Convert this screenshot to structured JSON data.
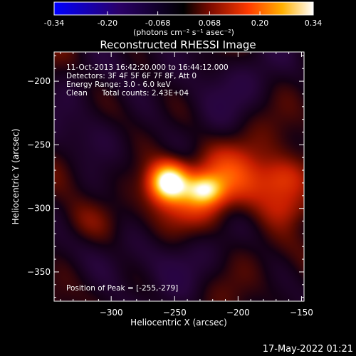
{
  "colorbar": {
    "ticks": [
      "-0.34",
      "-0.20",
      "-0.068",
      "0.068",
      "0.20",
      "0.34"
    ],
    "unit_label": "(photons cm⁻² s⁻¹ asec⁻²)",
    "range": [
      -0.34,
      0.34
    ]
  },
  "chart_data": {
    "type": "heatmap",
    "title": "Reconstructed RHESSI Image",
    "xlabel": "Heliocentric X (arcsec)",
    "ylabel": "Heliocentric Y (arcsec)",
    "xlim": [
      -345,
      -148
    ],
    "ylim": [
      -373,
      -177
    ],
    "x_ticks": [
      -300,
      -250,
      -200,
      -150
    ],
    "y_ticks": [
      -200,
      -250,
      -300,
      -350
    ],
    "annotations": {
      "line1": "11-Oct-2013 16:42:20.000 to 16:44:12.000",
      "line2": "Detectors: 3F 4F 5F 6F 7F 8F, Att 0",
      "line3": "Energy Range: 3.0 - 6.0 keV",
      "line4_method": "Clean",
      "line4_counts": "Total counts: 2.43E+04",
      "peak": "Position of Peak = [-255,-279]"
    },
    "peak": [
      -255,
      -279
    ],
    "sources": [
      {
        "x": -255,
        "y": -279,
        "sx": 10,
        "sy": 10,
        "amp": 0.34
      },
      {
        "x": -226,
        "y": -285,
        "sx": 10,
        "sy": 8,
        "amp": 0.2
      },
      {
        "x": -240,
        "y": -290,
        "sx": 28,
        "sy": 18,
        "amp": 0.09
      },
      {
        "x": -200,
        "y": -275,
        "sx": 30,
        "sy": 18,
        "amp": 0.1
      },
      {
        "x": -165,
        "y": -278,
        "sx": 14,
        "sy": 12,
        "amp": 0.1
      },
      {
        "x": -160,
        "y": -300,
        "sx": 14,
        "sy": 10,
        "amp": 0.06
      },
      {
        "x": -320,
        "y": -310,
        "sx": 18,
        "sy": 12,
        "amp": 0.05
      },
      {
        "x": -315,
        "y": -245,
        "sx": 20,
        "sy": 16,
        "amp": -0.05
      },
      {
        "x": -280,
        "y": -340,
        "sx": 30,
        "sy": 18,
        "amp": -0.05
      },
      {
        "x": -230,
        "y": -200,
        "sx": 35,
        "sy": 20,
        "amp": -0.04
      }
    ]
  },
  "footer": {
    "date": "17-May-2022 01:21"
  }
}
